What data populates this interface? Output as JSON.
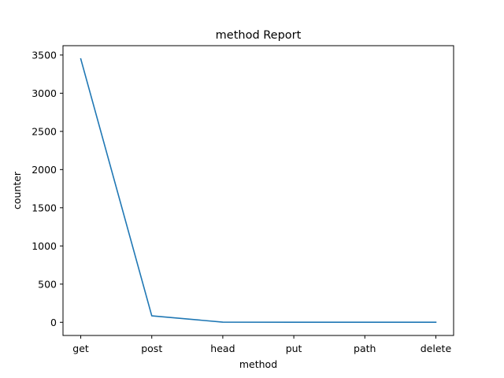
{
  "chart_data": {
    "type": "line",
    "title": "method Report",
    "xlabel": "method",
    "ylabel": "counter",
    "categories": [
      "get",
      "post",
      "head",
      "put",
      "path",
      "delete"
    ],
    "series": [
      {
        "values": [
          3450,
          85,
          2,
          1,
          1,
          1
        ],
        "color": "#1f77b4"
      }
    ],
    "ylim": [
      -172.5,
      3622.5
    ],
    "yticks": [
      0,
      500,
      1000,
      1500,
      2000,
      2500,
      3000,
      3500
    ],
    "ytick_labels": [
      "0",
      "500",
      "1000",
      "1500",
      "2000",
      "2500",
      "3000",
      "3500"
    ],
    "grid": false
  }
}
